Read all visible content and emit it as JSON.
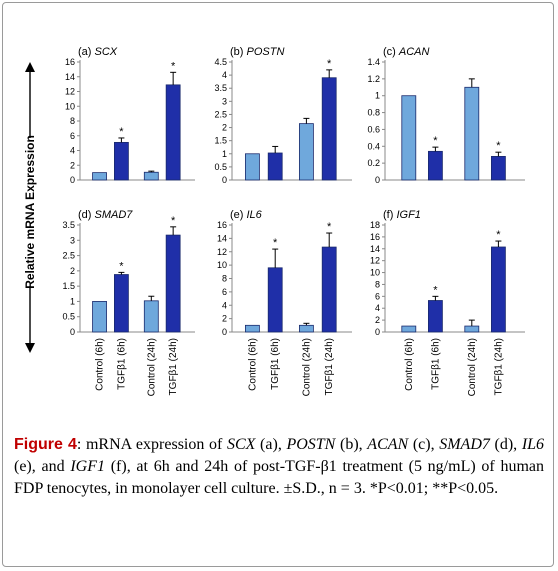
{
  "figure": {
    "y_axis_label": "Relative mRNA Expression",
    "categories": [
      "Control (6h)",
      "TGFβ1 (6h)",
      "Control (24h)",
      "TGFβ1 (24h)"
    ],
    "colors": {
      "control": "#6fa8dc",
      "tgf": "#1f2fa8",
      "stroke": "#1a2a6c",
      "error": "#000000"
    }
  },
  "caption": {
    "label": "Figure 4",
    "parts": [
      {
        "t": ": mRNA expression of ",
        "i": false
      },
      {
        "t": "SCX",
        "i": true
      },
      {
        "t": " (a), ",
        "i": false
      },
      {
        "t": "POSTN",
        "i": true
      },
      {
        "t": " (b), ",
        "i": false
      },
      {
        "t": "ACAN",
        "i": true
      },
      {
        "t": " (c), ",
        "i": false
      },
      {
        "t": "SMAD7",
        "i": true
      },
      {
        "t": " (d), ",
        "i": false
      },
      {
        "t": "IL6",
        "i": true
      },
      {
        "t": " (e), and ",
        "i": false
      },
      {
        "t": "IGF1",
        "i": true
      },
      {
        "t": " (f), at 6h and 24h of post-TGF-β1 treatment (5 ng/mL) of human FDP tenocytes, in monolayer cell culture. ±S.D., n = 3. *P<0.01; **P<0.05.",
        "i": false
      }
    ]
  },
  "chart_data": [
    {
      "type": "bar",
      "panel": "(a)",
      "gene": "SCX",
      "ylim": [
        0,
        16
      ],
      "ticks": [
        0,
        2,
        4,
        6,
        8,
        10,
        12,
        14,
        16
      ],
      "categories": [
        "Control (6h)",
        "TGFβ1 (6h)",
        "Control (24h)",
        "TGFβ1 (24h)"
      ],
      "values": [
        1.0,
        5.1,
        1.05,
        12.9
      ],
      "errors": [
        0,
        0.6,
        0.15,
        1.7
      ],
      "significance": [
        "",
        "*",
        "",
        "*"
      ]
    },
    {
      "type": "bar",
      "panel": "(b)",
      "gene": "POSTN",
      "ylim": [
        0,
        4.5
      ],
      "ticks": [
        0,
        0.5,
        1,
        1.5,
        2,
        2.5,
        3,
        3.5,
        4,
        4.5
      ],
      "categories": [
        "Control (6h)",
        "TGFβ1 (6h)",
        "Control (24h)",
        "TGFβ1 (24h)"
      ],
      "values": [
        1.0,
        1.03,
        2.15,
        3.9
      ],
      "errors": [
        0,
        0.25,
        0.2,
        0.3
      ],
      "significance": [
        "",
        "",
        "",
        "*"
      ]
    },
    {
      "type": "bar",
      "panel": "(c)",
      "gene": "ACAN",
      "ylim": [
        0,
        1.4
      ],
      "ticks": [
        0,
        0.2,
        0.4,
        0.6,
        0.8,
        1,
        1.2,
        1.4
      ],
      "categories": [
        "Control (6h)",
        "TGFβ1 (6h)",
        "Control (24h)",
        "TGFβ1 (24h)"
      ],
      "values": [
        1.0,
        0.34,
        1.1,
        0.28
      ],
      "errors": [
        0,
        0.05,
        0.1,
        0.05
      ],
      "significance": [
        "",
        "*",
        "",
        "*"
      ]
    },
    {
      "type": "bar",
      "panel": "(d)",
      "gene": "SMAD7",
      "ylim": [
        0,
        3.5
      ],
      "ticks": [
        0,
        0.5,
        1,
        1.5,
        2,
        2.5,
        3,
        3.5
      ],
      "categories": [
        "Control (6h)",
        "TGFβ1 (6h)",
        "Control (24h)",
        "TGFβ1 (24h)"
      ],
      "values": [
        1.0,
        1.88,
        1.02,
        3.17
      ],
      "errors": [
        0,
        0.07,
        0.15,
        0.27
      ],
      "significance": [
        "",
        "*",
        "",
        "*"
      ]
    },
    {
      "type": "bar",
      "panel": "(e)",
      "gene": "IL6",
      "ylim": [
        0,
        16
      ],
      "ticks": [
        0,
        2,
        4,
        6,
        8,
        10,
        12,
        14,
        16
      ],
      "categories": [
        "Control (6h)",
        "TGFβ1 (6h)",
        "Control (24h)",
        "TGFβ1 (24h)"
      ],
      "values": [
        1.0,
        9.6,
        1.0,
        12.7
      ],
      "errors": [
        0,
        2.8,
        0.3,
        2.1
      ],
      "significance": [
        "",
        "*",
        "",
        "*"
      ]
    },
    {
      "type": "bar",
      "panel": "(f)",
      "gene": "IGF1",
      "ylim": [
        0,
        18
      ],
      "ticks": [
        0,
        2,
        4,
        6,
        8,
        10,
        12,
        14,
        16,
        18
      ],
      "categories": [
        "Control (6h)",
        "TGFβ1 (6h)",
        "Control (24h)",
        "TGFβ1 (24h)"
      ],
      "values": [
        1.0,
        5.3,
        1.0,
        14.3
      ],
      "errors": [
        0,
        0.7,
        1.0,
        1.0
      ],
      "significance": [
        "",
        "*",
        "",
        "*"
      ]
    }
  ]
}
